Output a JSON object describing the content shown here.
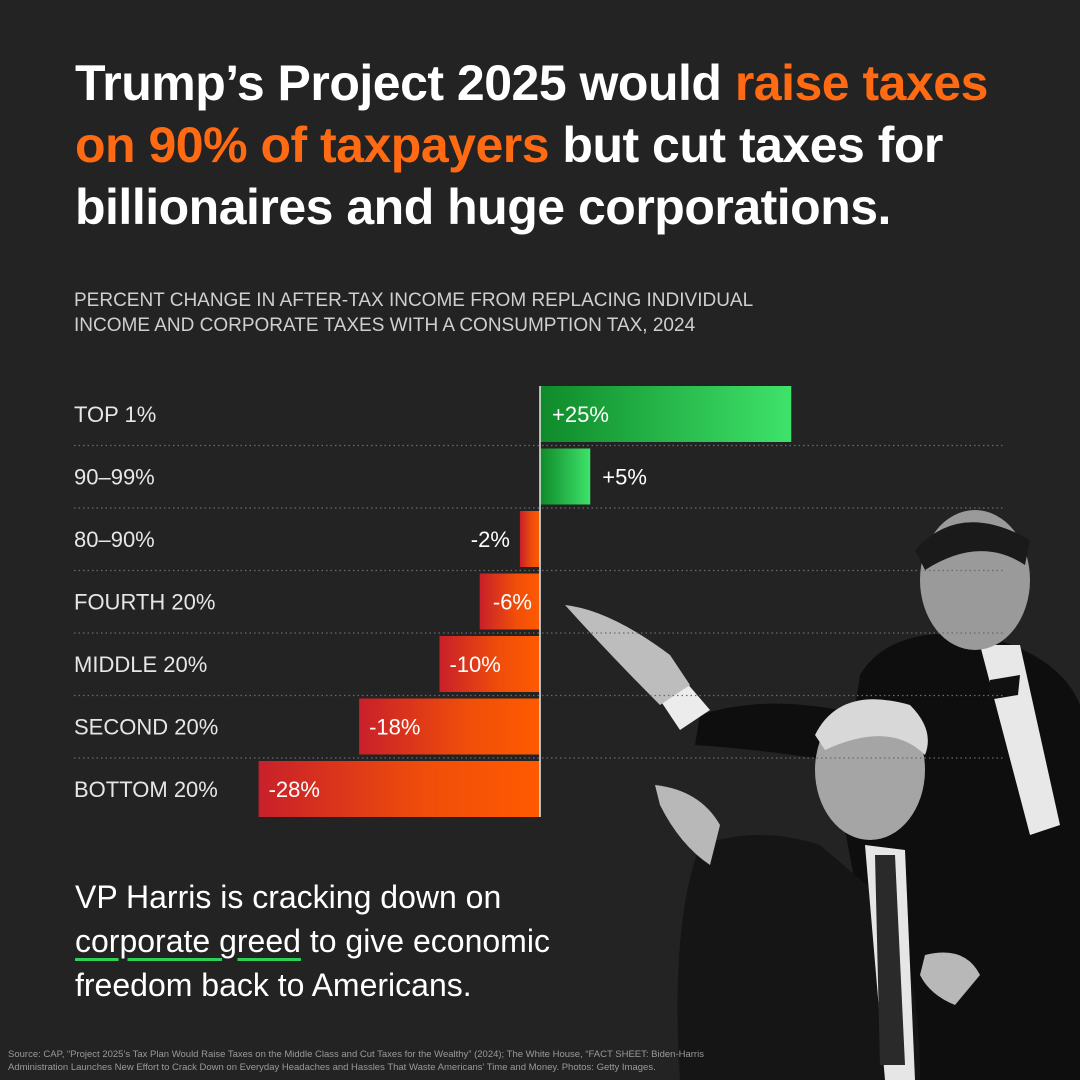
{
  "headline": {
    "part1": "Trump’s Project 2025 would ",
    "highlight": "raise taxes on 90% of taxpayers",
    "part2": " but cut taxes for billionaires and huge corporations."
  },
  "colors": {
    "highlight": "#ff6a13",
    "positive_dark": "#0f8a2a",
    "positive_light": "#3ee36a",
    "negative_dark": "#c8202a",
    "negative_light": "#ff5a00",
    "underline": "#2ed158"
  },
  "chart_data": {
    "type": "bar",
    "orientation": "horizontal",
    "title": "PERCENT CHANGE IN AFTER-TAX INCOME FROM REPLACING INDIVIDUAL INCOME AND CORPORATE TAXES WITH A CONSUMPTION TAX, 2024",
    "categories": [
      "TOP 1%",
      "90–99%",
      "80–90%",
      "FOURTH 20%",
      "MIDDLE 20%",
      "SECOND 20%",
      "BOTTOM 20%"
    ],
    "values": [
      25,
      5,
      -2,
      -6,
      -10,
      -18,
      -28
    ],
    "labels": [
      "+25%",
      "+5%",
      "-2%",
      "-6%",
      "-10%",
      "-18%",
      "-28%"
    ],
    "unit": "%",
    "xlim": [
      -28,
      46
    ],
    "grid": "dotted horizontal separators"
  },
  "body": {
    "line1": "VP Harris is cracking down on ",
    "underlined": "corporate greed",
    "line2": " to give economic freedom back to Americans."
  },
  "source": "Source: CAP, “Project 2025’s Tax Plan Would Raise Taxes on the Middle Class and Cut Taxes for the Wealthy” (2024); The White House, “FACT SHEET: Biden-Harris Administration Launches New Effort to Crack Down on Everyday Headaches and Hassles That Waste Americans’ Time and Money. Photos: Getty Images."
}
